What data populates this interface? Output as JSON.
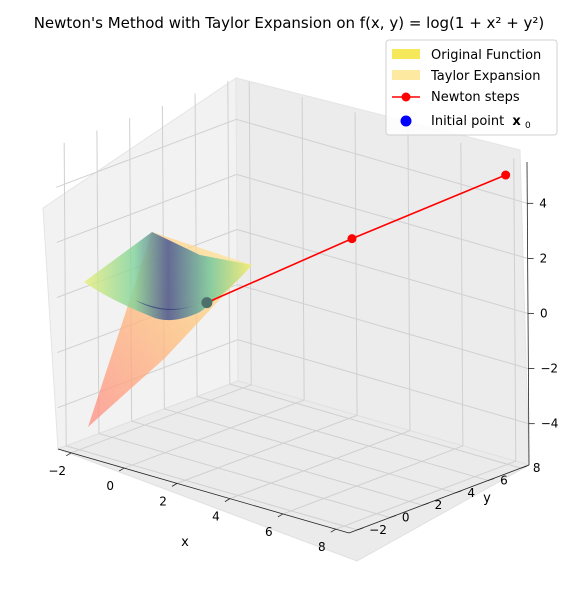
{
  "chart_data": {
    "type": "surface3d",
    "title": "Newton's Method with Taylor Expansion on f(x, y) = log(1 + x² + y²)",
    "xlabel": "x",
    "ylabel": "y",
    "zlabel": "",
    "xlim": [
      -2.5,
      8.5
    ],
    "ylim": [
      -2.5,
      8.5
    ],
    "zlim": [
      -5.5,
      5.5
    ],
    "x_ticks": [
      -2,
      0,
      2,
      4,
      6,
      8
    ],
    "y_ticks": [
      -2,
      0,
      2,
      4,
      6,
      8
    ],
    "z_ticks": [
      -4,
      -2,
      0,
      2,
      4
    ],
    "surfaces": [
      {
        "name": "Original Function",
        "function": "log(1 + x^2 + y^2)",
        "domain": [
          -2,
          2
        ],
        "colormap": "viridis",
        "alpha": 0.5
      },
      {
        "name": "Taylor Expansion",
        "expansion_point": [
          2,
          2
        ],
        "domain": [
          -2,
          2
        ],
        "colormap": "autumn",
        "alpha": 0.4
      }
    ],
    "series": [
      {
        "name": "Newton steps",
        "color": "#ff0000",
        "marker": "circle",
        "x": [
          1.0,
          4.4,
          8.0
        ],
        "y": [
          1.0,
          4.4,
          8.0
        ],
        "z": [
          0.0,
          2.5,
          5.0
        ]
      },
      {
        "name": "Initial point x₀",
        "color": "#0000ff",
        "marker": "circle",
        "x": [
          1.0
        ],
        "y": [
          1.0
        ],
        "z": [
          0.0
        ]
      }
    ],
    "legend": {
      "position": "top-right",
      "entries": [
        {
          "label": "Original Function",
          "color": "#f5e85a",
          "kind": "patch"
        },
        {
          "label": "Taylor Expansion",
          "color": "#fdeaa0",
          "kind": "patch"
        },
        {
          "label": "Newton steps",
          "color": "#ff0000",
          "kind": "line-marker"
        },
        {
          "label": "Initial point",
          "color": "#0000ff",
          "kind": "marker",
          "math_suffix": "x",
          "math_sub": "0"
        }
      ]
    }
  }
}
